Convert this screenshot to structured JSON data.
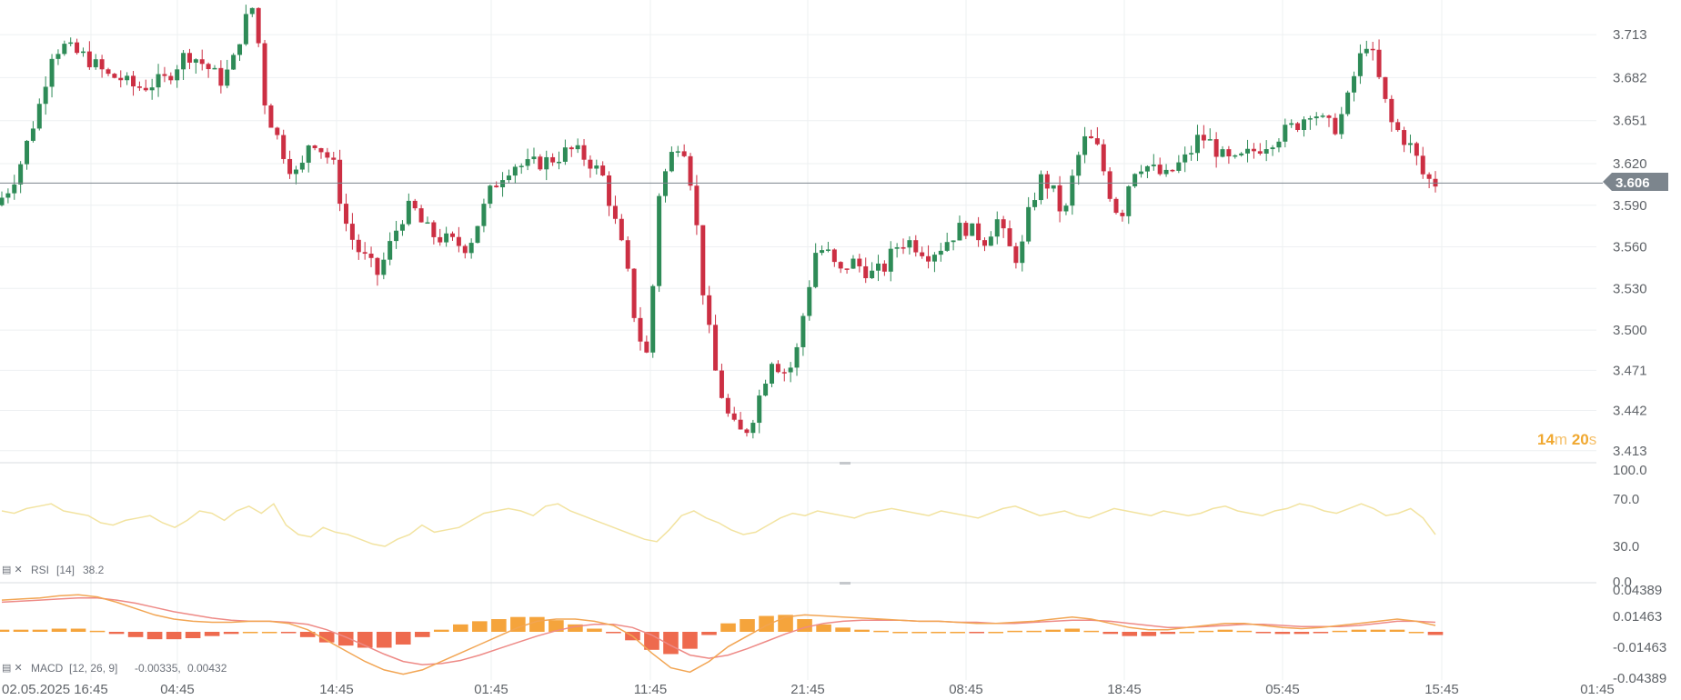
{
  "chart_data": [
    {
      "type": "candlestick",
      "title": "",
      "yticks": [
        "3.713",
        "3.682",
        "3.651",
        "3.620",
        "3.590",
        "3.560",
        "3.530",
        "3.500",
        "3.471",
        "3.442",
        "3.413"
      ],
      "ylim": [
        3.405,
        3.738
      ],
      "current_price": 3.606,
      "grid": true,
      "colors": {
        "up": "#2e8b57",
        "down": "#cc2f43",
        "price_line": "#7c858d",
        "tag": "#7c858d"
      },
      "series": [
        {
          "name": "price",
          "close_path": [
            3.59,
            3.6,
            3.615,
            3.64,
            3.665,
            3.7,
            3.705,
            3.7,
            3.697,
            3.69,
            3.683,
            3.682,
            3.676,
            3.675,
            3.678,
            3.68,
            3.69,
            3.7,
            3.695,
            3.688,
            3.68,
            3.69,
            3.72,
            3.735,
            3.66,
            3.64,
            3.62,
            3.61,
            3.64,
            3.63,
            3.62,
            3.58,
            3.56,
            3.55,
            3.54,
            3.56,
            3.58,
            3.59,
            3.575,
            3.568,
            3.565,
            3.562,
            3.56,
            3.58,
            3.6,
            3.612,
            3.62,
            3.618,
            3.62,
            3.622,
            3.625,
            3.63,
            3.627,
            3.62,
            3.61,
            3.58,
            3.55,
            3.5,
            3.48,
            3.6,
            3.625,
            3.64,
            3.6,
            3.52,
            3.47,
            3.44,
            3.425,
            3.43,
            3.455,
            3.48,
            3.47,
            3.475,
            3.52,
            3.56,
            3.555,
            3.54,
            3.55,
            3.545,
            3.54,
            3.545,
            3.56,
            3.565,
            3.56,
            3.555,
            3.56,
            3.568,
            3.575,
            3.57,
            3.565,
            3.58,
            3.56,
            3.55,
            3.59,
            3.61,
            3.6,
            3.58,
            3.62,
            3.64,
            3.63,
            3.6,
            3.58,
            3.615,
            3.62,
            3.615,
            3.61,
            3.618,
            3.625,
            3.64,
            3.635,
            3.625,
            3.62,
            3.625,
            3.63,
            3.635,
            3.64,
            3.645,
            3.65,
            3.66,
            3.65,
            3.645,
            3.66,
            3.69,
            3.71,
            3.68,
            3.65,
            3.64,
            3.63,
            3.61,
            3.606
          ]
        }
      ]
    },
    {
      "type": "line",
      "name": "RSI",
      "label": "RSI",
      "params": "[14]",
      "value": "38.2",
      "yticks": [
        "100.0",
        "70.0",
        "30.0",
        "0.0"
      ],
      "ylim": [
        0,
        100
      ],
      "color": "#f2e3a0",
      "values": [
        60,
        58,
        62,
        64,
        66,
        60,
        58,
        56,
        50,
        48,
        52,
        54,
        56,
        50,
        46,
        52,
        60,
        58,
        52,
        60,
        64,
        58,
        66,
        48,
        40,
        38,
        46,
        42,
        40,
        36,
        32,
        30,
        36,
        40,
        48,
        42,
        44,
        46,
        52,
        58,
        60,
        62,
        60,
        56,
        64,
        66,
        60,
        56,
        52,
        48,
        44,
        40,
        36,
        34,
        44,
        56,
        60,
        54,
        50,
        44,
        40,
        42,
        48,
        54,
        58,
        56,
        60,
        58,
        56,
        54,
        58,
        60,
        62,
        60,
        58,
        56,
        60,
        58,
        56,
        54,
        58,
        62,
        64,
        60,
        56,
        58,
        60,
        56,
        54,
        58,
        62,
        60,
        58,
        56,
        60,
        58,
        56,
        58,
        62,
        64,
        60,
        58,
        56,
        60,
        62,
        66,
        64,
        60,
        58,
        62,
        66,
        62,
        56,
        58,
        62,
        54,
        40
      ]
    },
    {
      "type": "bar+line",
      "name": "MACD",
      "label": "MACD",
      "params": "[12, 26, 9]",
      "value": "-0.00335,",
      "value2": "0.00432",
      "yticks": [
        "0.04389",
        "0.01463",
        "-0.01463",
        "-0.04389"
      ],
      "ylim": [
        -0.0455,
        0.0455
      ],
      "colors": {
        "hist_pos": "#f5a43c",
        "hist_neg": "#ee6a4e",
        "macd": "#f2a553",
        "signal": "#ee8a86"
      },
      "macd": [
        0.03,
        0.031,
        0.032,
        0.034,
        0.035,
        0.033,
        0.028,
        0.022,
        0.016,
        0.012,
        0.01,
        0.009,
        0.009,
        0.01,
        0.01,
        0.008,
        0.002,
        -0.008,
        -0.018,
        -0.028,
        -0.036,
        -0.04,
        -0.036,
        -0.028,
        -0.02,
        -0.012,
        -0.004,
        0.004,
        0.01,
        0.012,
        0.012,
        0.01,
        0.006,
        -0.004,
        -0.02,
        -0.034,
        -0.038,
        -0.028,
        -0.014,
        -0.004,
        0.006,
        0.014,
        0.016,
        0.015,
        0.014,
        0.013,
        0.012,
        0.011,
        0.01,
        0.01,
        0.009,
        0.008,
        0.008,
        0.009,
        0.01,
        0.012,
        0.014,
        0.012,
        0.008,
        0.004,
        0.002,
        0.002,
        0.004,
        0.006,
        0.008,
        0.008,
        0.006,
        0.004,
        0.003,
        0.004,
        0.006,
        0.008,
        0.01,
        0.012,
        0.01,
        0.006
      ],
      "signal": [
        0.028,
        0.029,
        0.03,
        0.031,
        0.032,
        0.032,
        0.03,
        0.027,
        0.023,
        0.019,
        0.016,
        0.013,
        0.011,
        0.01,
        0.01,
        0.009,
        0.007,
        0.002,
        -0.005,
        -0.013,
        -0.021,
        -0.028,
        -0.031,
        -0.03,
        -0.027,
        -0.022,
        -0.016,
        -0.01,
        -0.004,
        0.001,
        0.005,
        0.007,
        0.007,
        0.004,
        -0.003,
        -0.013,
        -0.022,
        -0.025,
        -0.022,
        -0.016,
        -0.009,
        -0.002,
        0.004,
        0.008,
        0.01,
        0.011,
        0.011,
        0.011,
        0.01,
        0.01,
        0.009,
        0.009,
        0.008,
        0.008,
        0.009,
        0.01,
        0.011,
        0.011,
        0.01,
        0.008,
        0.006,
        0.004,
        0.004,
        0.005,
        0.006,
        0.007,
        0.007,
        0.006,
        0.005,
        0.005,
        0.005,
        0.006,
        0.008,
        0.01,
        0.01,
        0.009
      ]
    }
  ],
  "xaxis": {
    "ticks": [
      "02.05.2025",
      "16:45",
      "04:45",
      "14:45",
      "01:45",
      "11:45",
      "21:45",
      "08:45",
      "18:45",
      "05:45",
      "15:45",
      "01:45"
    ]
  },
  "timer": {
    "min": "14",
    "min_unit": "m",
    "sec": "20",
    "sec_unit": "s"
  },
  "price_tag": "3.606"
}
